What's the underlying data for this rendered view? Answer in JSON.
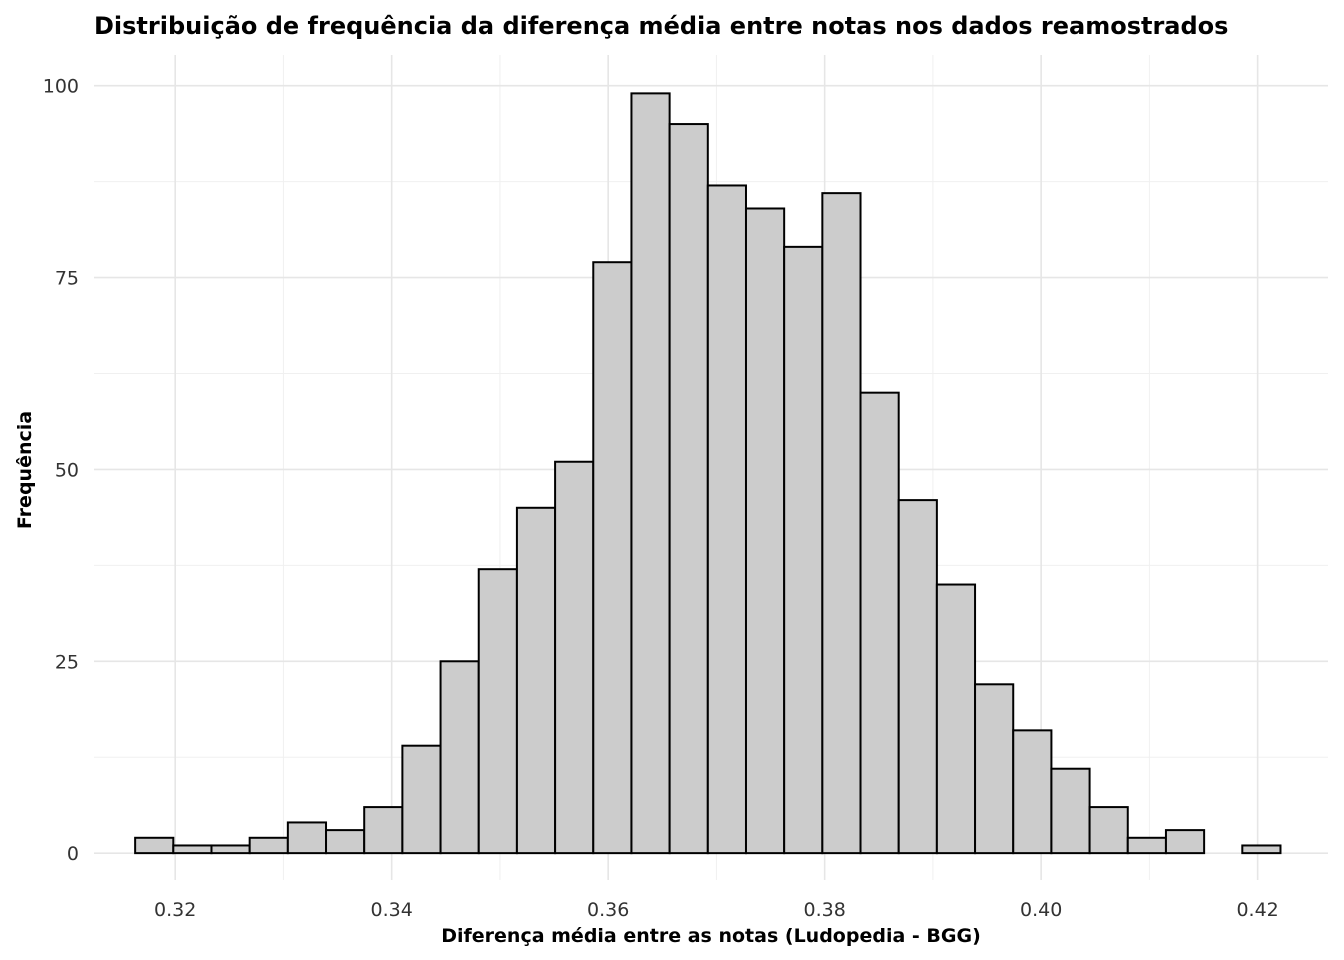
{
  "chart_data": {
    "type": "bar",
    "title": "Distribuição de frequência da diferença média entre notas nos dados reamostrados",
    "xlabel": "Diferença média entre as notas (Ludopedia - BGG)",
    "ylabel": "Frequência",
    "xlim": [
      0.3125,
      0.4265
    ],
    "ylim": [
      -3.5,
      104
    ],
    "x_ticks": [
      0.32,
      0.34,
      0.36,
      0.38,
      0.4,
      0.42
    ],
    "x_tick_labels": [
      "0.32",
      "0.34",
      "0.36",
      "0.38",
      "0.40",
      "0.42"
    ],
    "y_ticks": [
      0,
      25,
      50,
      75,
      100
    ],
    "y_tick_labels": [
      "0",
      "25",
      "50",
      "75",
      "100"
    ],
    "grid": true,
    "bin_width": 0.003527,
    "bins_start": 0.3163,
    "values": [
      2,
      1,
      1,
      2,
      4,
      3,
      6,
      14,
      25,
      37,
      45,
      51,
      77,
      99,
      95,
      87,
      84,
      79,
      86,
      60,
      46,
      35,
      22,
      16,
      11,
      6,
      2,
      3,
      0,
      1
    ],
    "bar_fill": "#cccccc",
    "bar_stroke": "#000000"
  }
}
